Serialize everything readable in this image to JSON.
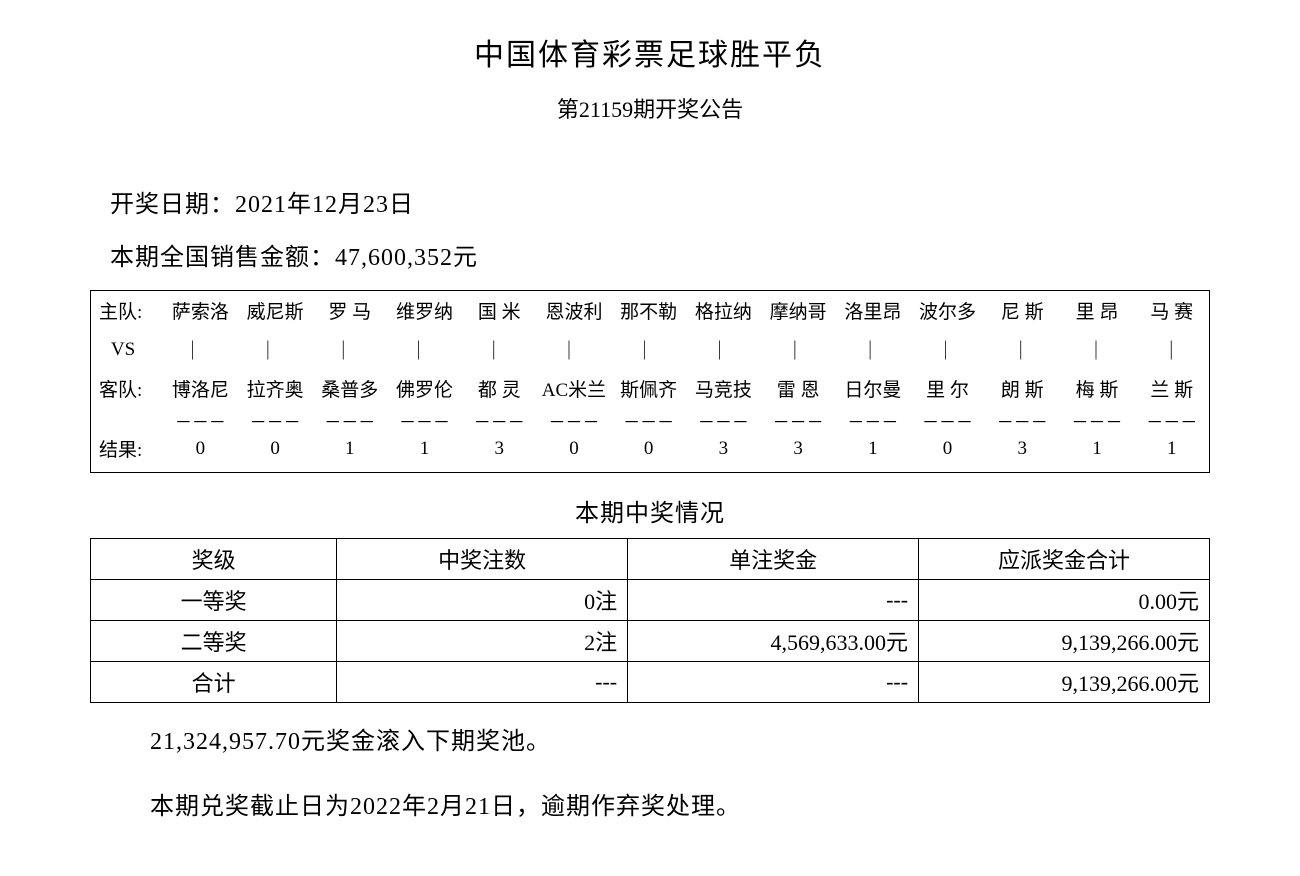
{
  "header": {
    "title": "中国体育彩票足球胜平负",
    "subtitle": "第21159期开奖公告"
  },
  "info": {
    "draw_date_label": "开奖日期：",
    "draw_date_value": "2021年12月23日",
    "sales_label": "本期全国销售金额：",
    "sales_value": "47,600,352元"
  },
  "match": {
    "home_label": "主队:",
    "vs_label": "VS",
    "away_label": "客队:",
    "result_label": "结果:",
    "home": [
      "萨索洛",
      "威尼斯",
      "罗 马",
      "维罗纳",
      "国 米",
      "恩波利",
      "那不勒",
      "格拉纳",
      "摩纳哥",
      "洛里昂",
      "波尔多",
      "尼 斯",
      "里 昂",
      "马 赛"
    ],
    "away": [
      "博洛尼",
      "拉齐奥",
      "桑普多",
      "佛罗伦",
      "都 灵",
      "AC米兰",
      "斯佩齐",
      "马竞技",
      "雷 恩",
      "日尔曼",
      "里 尔",
      "朗 斯",
      "梅 斯",
      "兰 斯"
    ],
    "vs_mark": "｜",
    "dash_mark": "－－－",
    "results": [
      "0",
      "0",
      "1",
      "1",
      "3",
      "0",
      "0",
      "3",
      "3",
      "1",
      "0",
      "3",
      "1",
      "1"
    ]
  },
  "prize": {
    "heading": "本期中奖情况",
    "columns": [
      "奖级",
      "中奖注数",
      "单注奖金",
      "应派奖金合计"
    ],
    "rows": [
      {
        "level": "一等奖",
        "count": "0注",
        "unit": "---",
        "total": "0.00元"
      },
      {
        "level": "二等奖",
        "count": "2注",
        "unit": "4,569,633.00元",
        "total": "9,139,266.00元"
      },
      {
        "level": "合计",
        "count": "---",
        "unit": "---",
        "total": "9,139,266.00元"
      }
    ]
  },
  "footer": {
    "rollover": "21,324,957.70元奖金滚入下期奖池。",
    "deadline": "本期兑奖截止日为2022年2月21日，逾期作弃奖处理。"
  }
}
